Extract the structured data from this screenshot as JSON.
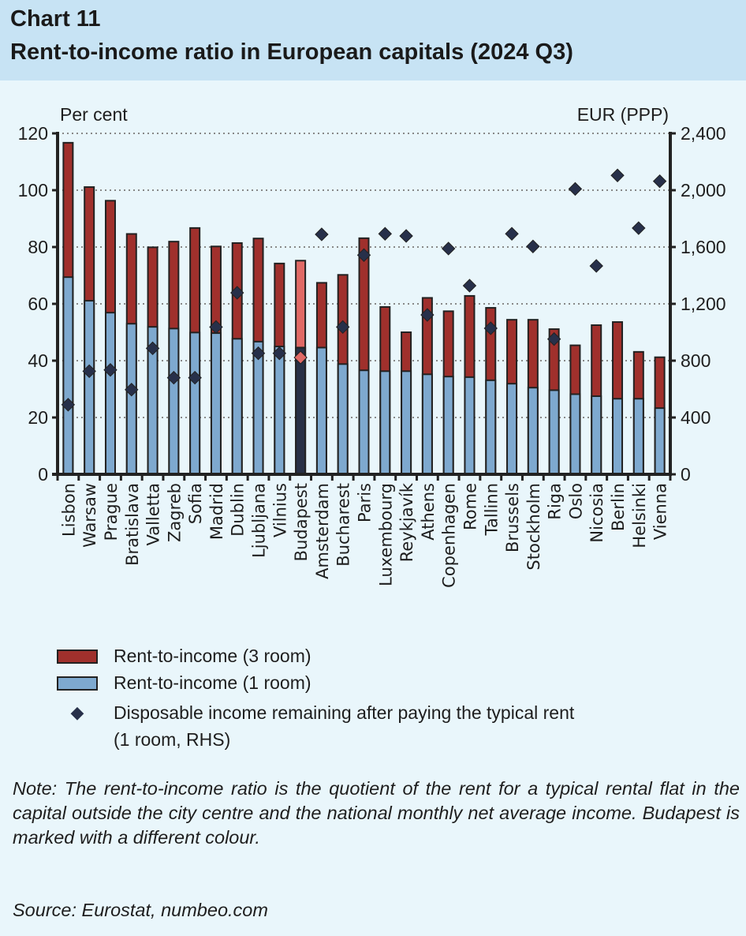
{
  "header": {
    "chart_number": "Chart 11",
    "title": "Rent-to-income ratio in European capitals (2024 Q3)"
  },
  "colors": {
    "rent3": "#a0302c",
    "rent1": "#7ea9cf",
    "budapest3": "#e06a66",
    "budapest1": "#283046",
    "diamond": "#27304a",
    "budapest_diamond": "#e06a66",
    "grid": "#888888"
  },
  "chart_data": {
    "type": "bar",
    "stacked_overlay": true,
    "left_axis": {
      "label": "Per cent",
      "range": [
        0,
        120
      ],
      "ticks": [
        "0",
        "20",
        "40",
        "60",
        "80",
        "100",
        "120"
      ]
    },
    "right_axis": {
      "label": "EUR (PPP)",
      "range": [
        0,
        2400
      ],
      "ticks": [
        "0",
        "400",
        "800",
        "1,200",
        "1,600",
        "2,000",
        "2,400"
      ]
    },
    "grid": "horizontal dotted",
    "highlight": "Budapest",
    "categories": [
      "Lisbon",
      "Warsaw",
      "Prague",
      "Bratislava",
      "Valletta",
      "Zagreb",
      "Sofia",
      "Madrid",
      "Dublin",
      "Ljubljana",
      "Vilnius",
      "Budapest",
      "Amsterdam",
      "Bucharest",
      "Paris",
      "Luxembourg",
      "Reykjavík",
      "Athens",
      "Copenhagen",
      "Rome",
      "Tallinn",
      "Brussels",
      "Stockholm",
      "Riga",
      "Oslo",
      "Nicosia",
      "Berlin",
      "Helsinki",
      "Vienna"
    ],
    "series": [
      {
        "name": "Rent-to-income (3 room)",
        "type": "bar",
        "axis": "left",
        "values": [
          116.7,
          101.1,
          96.3,
          84.6,
          79.9,
          81.9,
          86.7,
          80.2,
          81.4,
          83.0,
          74.2,
          75.2,
          67.4,
          70.2,
          83.1,
          58.9,
          50.0,
          62.1,
          57.4,
          62.8,
          58.6,
          54.4,
          54.4,
          51.1,
          45.4,
          52.5,
          53.6,
          43.1,
          41.2
        ]
      },
      {
        "name": "Rent-to-income (1 room)",
        "type": "bar",
        "axis": "left",
        "values": [
          69.4,
          61.1,
          56.9,
          53.0,
          51.9,
          51.3,
          49.9,
          49.7,
          47.7,
          46.7,
          45.0,
          44.6,
          44.6,
          38.8,
          36.6,
          36.3,
          36.3,
          35.2,
          34.4,
          34.2,
          33.1,
          31.9,
          30.5,
          29.6,
          28.2,
          27.5,
          26.6,
          26.6,
          23.3
        ]
      },
      {
        "name": "Disposable income remaining after paying the typical rent (1 room, RHS)",
        "type": "scatter",
        "axis": "right",
        "values": [
          490,
          726,
          735,
          596,
          887,
          680,
          680,
          1037,
          1278,
          852,
          852,
          822,
          1689,
          1037,
          1543,
          1693,
          1678,
          1122,
          1589,
          1328,
          1028,
          1693,
          1604,
          952,
          2009,
          1467,
          2104,
          1733,
          2063
        ]
      }
    ],
    "legend": {
      "placement": "bottom-left",
      "entries": [
        "Rent-to-income (3 room)",
        "Rent-to-income (1 room)",
        "Disposable income remaining after paying the typical rent",
        "(1 room, RHS)"
      ]
    }
  },
  "note": "Note: The rent-to-income ratio is the quotient of the rent for a typical rental flat in the capital outside the city centre and the national monthly net average income. Budapest is marked with a different colour.",
  "source": "Source: Eurostat, numbeo.com"
}
